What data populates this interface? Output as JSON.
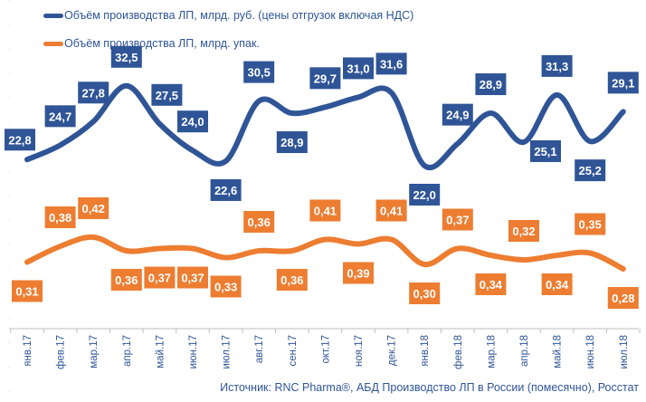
{
  "chart_data": {
    "type": "line",
    "title": "",
    "xlabel": "",
    "ylabel": "",
    "categories": [
      "янв.17",
      "фев.17",
      "мар.17",
      "апр.17",
      "май.17",
      "июн.17",
      "июл.17",
      "авг.17",
      "сен.17",
      "окт.17",
      "ноя.17",
      "дек.17",
      "янв.18",
      "фев.18",
      "мар.18",
      "апр.18",
      "май.18",
      "июн.18",
      "июл.18"
    ],
    "series": [
      {
        "name": "Объём производства ЛП, млрд. руб. (цены отгрузок включая НДС)",
        "color": "#2f5597",
        "values": [
          22.8,
          24.7,
          27.8,
          32.5,
          27.5,
          24.0,
          22.6,
          30.5,
          28.9,
          29.7,
          31.0,
          31.6,
          22.0,
          24.9,
          28.9,
          25.1,
          31.3,
          25.2,
          29.1
        ],
        "labels": [
          "22,8",
          "24,7",
          "27,8",
          "32,5",
          "27,5",
          "24,0",
          "22,6",
          "30,5",
          "28,9",
          "29,7",
          "31,0",
          "31,6",
          "22,0",
          "24,9",
          "28,9",
          "25,1",
          "31,3",
          "25,2",
          "29,1"
        ]
      },
      {
        "name": "Объём производства ЛП, млрд. упак.",
        "color": "#ed7d31",
        "values": [
          0.31,
          0.38,
          0.42,
          0.36,
          0.37,
          0.37,
          0.33,
          0.36,
          0.36,
          0.41,
          0.39,
          0.41,
          0.3,
          0.37,
          0.34,
          0.32,
          0.34,
          0.35,
          0.28
        ],
        "labels": [
          "0,31",
          "0,38",
          "0,42",
          "0,36",
          "0,37",
          "0,37",
          "0,33",
          "0,36",
          "0,36",
          "0,41",
          "0,39",
          "0,41",
          "0,30",
          "0,37",
          "0,34",
          "0,32",
          "0,34",
          "0,35",
          "0,28"
        ]
      }
    ],
    "grid": false,
    "legend_position": "top-left",
    "source": "Источник: RNC Pharma®, АБД Производство ЛП в России (помесячно), Росстат"
  }
}
